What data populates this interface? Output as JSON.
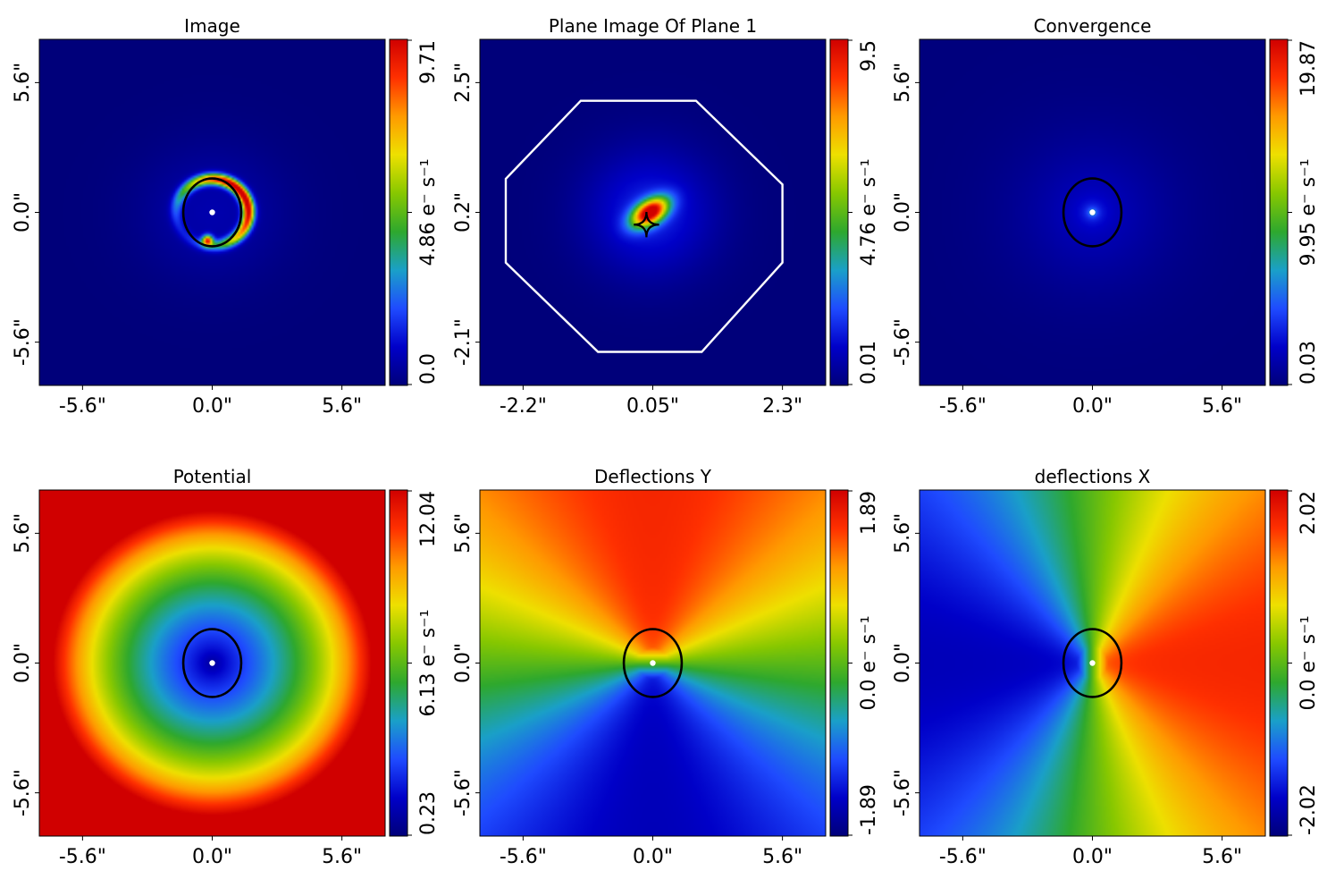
{
  "colors": {
    "cmap": [
      "#00007a",
      "#0000c8",
      "#1f4bff",
      "#1aa0c8",
      "#2ea82e",
      "#88c800",
      "#eee000",
      "#ff9a00",
      "#ff3000",
      "#d00000"
    ],
    "critical_curve": "#000000",
    "mask_border": "#ffffff",
    "center_marker": "#ffffff"
  },
  "chart_data": [
    {
      "type": "heatmap",
      "title": "Image",
      "content": "lensed-arc",
      "xticks": [
        "-5.6\"",
        "0.0\"",
        "5.6\""
      ],
      "yticks": [
        "-5.6\"",
        "0.0\"",
        "5.6\""
      ],
      "extent": [
        -7.4,
        7.4
      ],
      "colorbar": {
        "ticks": [
          "0.0",
          "4.86 e⁻ s⁻¹",
          "9.71"
        ],
        "min": 0.0,
        "max": 9.71
      },
      "critical_curve": {
        "cx": 0.0,
        "cy": 0.0,
        "rx": 1.24,
        "ry": 1.45
      }
    },
    {
      "type": "heatmap",
      "title": "Plane Image Of Plane 1",
      "content": "source",
      "xticks": [
        "-2.2\"",
        "0.05\"",
        "2.3\""
      ],
      "yticks": [
        "-2.1\"",
        "0.2\"",
        "2.5\""
      ],
      "extent_x": [
        -2.95,
        3.05
      ],
      "extent_y": [
        -2.9,
        3.3
      ],
      "colorbar": {
        "ticks": [
          "0.01",
          "4.76 e⁻ s⁻¹",
          "9.5"
        ],
        "min": 0.01,
        "max": 9.5
      },
      "mask_border": [
        [
          -1.2,
          2.2
        ],
        [
          0.8,
          2.2
        ],
        [
          2.3,
          0.7
        ],
        [
          2.3,
          -0.7
        ],
        [
          0.9,
          -2.3
        ],
        [
          -0.9,
          -2.3
        ],
        [
          -2.5,
          -0.7
        ],
        [
          -2.5,
          0.8
        ]
      ],
      "caustic": {
        "cx": -0.06,
        "cy": -0.02,
        "r": 0.22
      }
    },
    {
      "type": "heatmap",
      "title": "Convergence",
      "content": "convergence",
      "xticks": [
        "-5.6\"",
        "0.0\"",
        "5.6\""
      ],
      "yticks": [
        "-5.6\"",
        "0.0\"",
        "5.6\""
      ],
      "extent": [
        -7.4,
        7.4
      ],
      "colorbar": {
        "ticks": [
          "0.03",
          "9.95 e⁻ s⁻¹",
          "19.87"
        ],
        "min": 0.03,
        "max": 19.87
      },
      "critical_curve": {
        "cx": 0.0,
        "cy": 0.0,
        "rx": 1.24,
        "ry": 1.45
      }
    },
    {
      "type": "heatmap",
      "title": "Potential",
      "content": "potential",
      "xticks": [
        "-5.6\"",
        "0.0\"",
        "5.6\""
      ],
      "yticks": [
        "-5.6\"",
        "0.0\"",
        "5.6\""
      ],
      "extent": [
        -7.4,
        7.4
      ],
      "colorbar": {
        "ticks": [
          "0.23",
          "6.13 e⁻ s⁻¹",
          "12.04"
        ],
        "min": 0.23,
        "max": 12.04
      },
      "critical_curve": {
        "cx": 0.0,
        "cy": 0.0,
        "rx": 1.24,
        "ry": 1.45
      }
    },
    {
      "type": "heatmap",
      "title": "Deflections Y",
      "content": "deflection-y",
      "xticks": [
        "-5.6\"",
        "0.0\"",
        "5.6\""
      ],
      "yticks": [
        "-5.6\"",
        "0.0\"",
        "5.6\""
      ],
      "extent": [
        -7.4,
        7.4
      ],
      "colorbar": {
        "ticks": [
          "-1.89",
          "0.0 e⁻ s⁻¹",
          "1.89"
        ],
        "min": -1.89,
        "max": 1.89
      },
      "critical_curve": {
        "cx": 0.0,
        "cy": 0.0,
        "rx": 1.24,
        "ry": 1.45
      }
    },
    {
      "type": "heatmap",
      "title": "deflections X",
      "content": "deflection-x",
      "xticks": [
        "-5.6\"",
        "0.0\"",
        "5.6\""
      ],
      "yticks": [
        "-5.6\"",
        "0.0\"",
        "5.6\""
      ],
      "extent": [
        -7.4,
        7.4
      ],
      "colorbar": {
        "ticks": [
          "-2.02",
          "0.0 e⁻ s⁻¹",
          "2.02"
        ],
        "min": -2.02,
        "max": 2.02
      },
      "critical_curve": {
        "cx": 0.0,
        "cy": 0.0,
        "rx": 1.24,
        "ry": 1.45
      }
    }
  ]
}
